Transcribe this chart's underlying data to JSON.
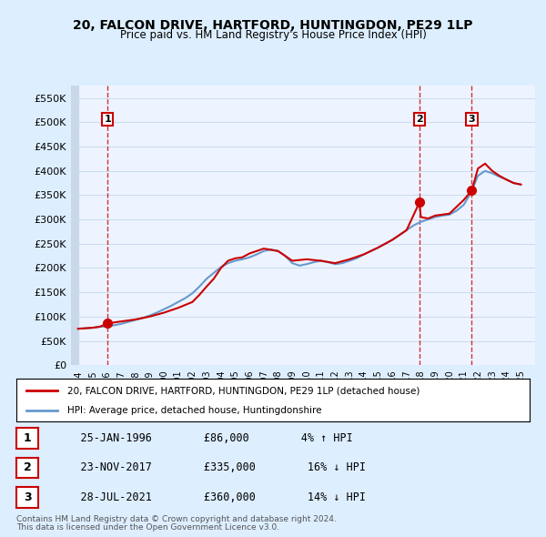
{
  "title": "20, FALCON DRIVE, HARTFORD, HUNTINGDON, PE29 1LP",
  "subtitle": "Price paid vs. HM Land Registry's House Price Index (HPI)",
  "legend_line1": "20, FALCON DRIVE, HARTFORD, HUNTINGDON, PE29 1LP (detached house)",
  "legend_line2": "HPI: Average price, detached house, Huntingdonshire",
  "footnote1": "Contains HM Land Registry data © Crown copyright and database right 2024.",
  "footnote2": "This data is licensed under the Open Government Licence v3.0.",
  "transactions": [
    {
      "num": 1,
      "date": "25-JAN-1996",
      "price": 86000,
      "pct": "4%",
      "dir": "↑"
    },
    {
      "num": 2,
      "date": "23-NOV-2017",
      "price": 335000,
      "pct": "16%",
      "dir": "↓"
    },
    {
      "num": 3,
      "date": "28-JUL-2021",
      "price": 360000,
      "pct": "14%",
      "dir": "↓"
    }
  ],
  "transaction_years": [
    1996.07,
    2017.9,
    2021.57
  ],
  "transaction_prices": [
    86000,
    335000,
    360000
  ],
  "hpi_color": "#6699cc",
  "price_color": "#cc0000",
  "marker_color": "#cc0000",
  "grid_color": "#ccddee",
  "background_color": "#ddeeff",
  "plot_bg_color": "#eef4ff",
  "hatch_color": "#c8d8e8",
  "ylim": [
    0,
    575000
  ],
  "yticks": [
    0,
    50000,
    100000,
    150000,
    200000,
    250000,
    300000,
    350000,
    400000,
    450000,
    500000,
    550000
  ],
  "xlim_start": 1993.5,
  "xlim_end": 2026.0,
  "hpi_data": {
    "years": [
      1994,
      1994.5,
      1995,
      1995.5,
      1996,
      1996.5,
      1997,
      1997.5,
      1998,
      1998.5,
      1999,
      1999.5,
      2000,
      2000.5,
      2001,
      2001.5,
      2002,
      2002.5,
      2003,
      2003.5,
      2004,
      2004.5,
      2005,
      2005.5,
      2006,
      2006.5,
      2007,
      2007.5,
      2008,
      2008.5,
      2009,
      2009.5,
      2010,
      2010.5,
      2011,
      2011.5,
      2012,
      2012.5,
      2013,
      2013.5,
      2014,
      2014.5,
      2015,
      2015.5,
      2016,
      2016.5,
      2017,
      2017.5,
      2018,
      2018.5,
      2019,
      2019.5,
      2020,
      2020.5,
      2021,
      2021.5,
      2022,
      2022.5,
      2023,
      2023.5,
      2024,
      2024.5,
      2025
    ],
    "values": [
      75000,
      76000,
      77000,
      79000,
      80000,
      82000,
      85000,
      89000,
      93000,
      97000,
      102000,
      108000,
      115000,
      122000,
      130000,
      138000,
      148000,
      162000,
      178000,
      190000,
      202000,
      210000,
      215000,
      218000,
      222000,
      228000,
      235000,
      238000,
      235000,
      225000,
      210000,
      205000,
      208000,
      212000,
      215000,
      212000,
      208000,
      210000,
      215000,
      220000,
      228000,
      235000,
      242000,
      250000,
      258000,
      268000,
      278000,
      288000,
      295000,
      300000,
      305000,
      308000,
      310000,
      318000,
      330000,
      355000,
      390000,
      400000,
      395000,
      388000,
      382000,
      375000,
      372000
    ]
  },
  "price_data": {
    "years": [
      1994,
      1994.5,
      1995,
      1995.5,
      1996.07,
      1997,
      1998,
      1999,
      2000,
      2001,
      2002,
      2002.5,
      2003,
      2003.5,
      2004,
      2004.5,
      2005,
      2005.5,
      2006,
      2007,
      2008,
      2009,
      2010,
      2011,
      2012,
      2013,
      2014,
      2015,
      2016,
      2017,
      2017.9,
      2018,
      2018.5,
      2019,
      2020,
      2021,
      2021.57,
      2022,
      2022.5,
      2023,
      2023.5,
      2024,
      2024.5,
      2025
    ],
    "values": [
      75000,
      76000,
      77000,
      79000,
      86000,
      90000,
      94000,
      100000,
      108000,
      118000,
      130000,
      145000,
      162000,
      178000,
      200000,
      215000,
      220000,
      222000,
      230000,
      240000,
      235000,
      215000,
      218000,
      215000,
      210000,
      218000,
      228000,
      242000,
      258000,
      278000,
      335000,
      305000,
      302000,
      308000,
      312000,
      340000,
      360000,
      405000,
      415000,
      400000,
      390000,
      382000,
      375000,
      372000
    ]
  }
}
